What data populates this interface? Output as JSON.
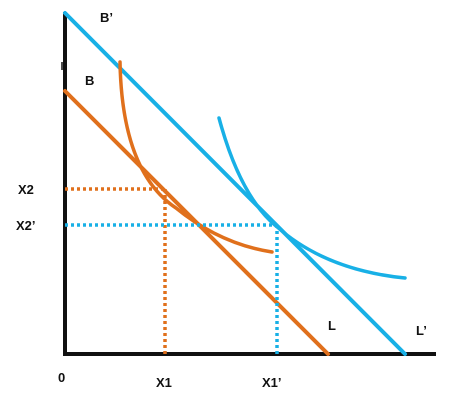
{
  "colors": {
    "axis": "#111111",
    "orange": "#e0701c",
    "blue": "#18b0e6",
    "text": "#111111"
  },
  "labels": {
    "origin": "0",
    "x1": "X1",
    "x1_prime": "X1’",
    "x2": "X2",
    "x2_prime": "X2’",
    "b": "B",
    "b_prime": "B’",
    "l": "L",
    "l_prime": "L’"
  }
}
